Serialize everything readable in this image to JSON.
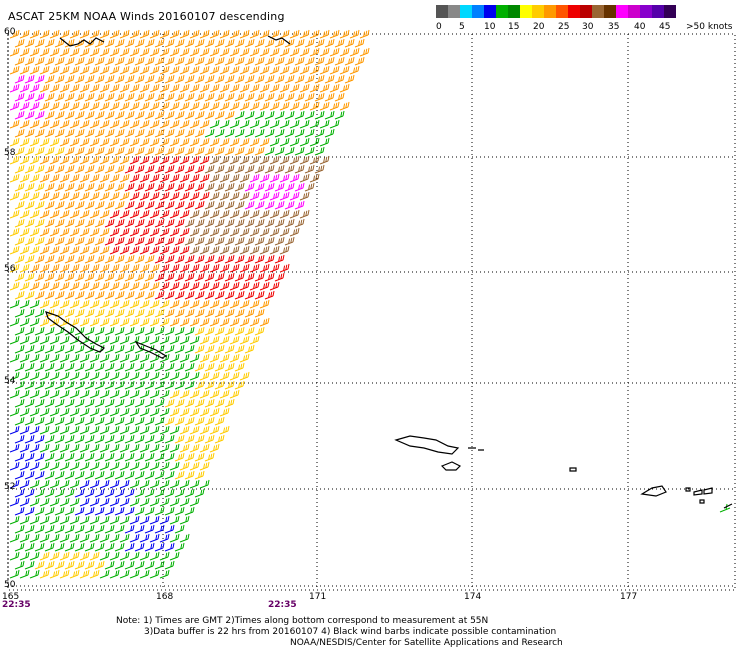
{
  "title": "ASCAT 25KM NOAA Winds 20160107 descending",
  "legend": {
    "colors": [
      "#555555",
      "#888888",
      "#00d8ff",
      "#0080ff",
      "#0000ee",
      "#00b000",
      "#008800",
      "#ffff00",
      "#ffcc00",
      "#ff9900",
      "#ff5500",
      "#ee0000",
      "#bb0000",
      "#996633",
      "#663300",
      "#ff00ff",
      "#cc00cc",
      "#8800cc",
      "#5500aa",
      "#330055"
    ],
    "labels": [
      "0",
      "5",
      "10",
      "15",
      "20",
      "25",
      "30",
      "35",
      "40",
      "45",
      ">50 knots"
    ]
  },
  "axes": {
    "lat_labels": [
      "60",
      "58",
      "56",
      "54",
      "52",
      "50"
    ],
    "lon_labels": [
      "165",
      "168",
      "171",
      "174",
      "177"
    ]
  },
  "times": [
    "22:35",
    "22:35"
  ],
  "notes": [
    "Note: 1) Times are GMT 2)Times along bottom correspond to measurement at 55N",
    "3)Data buffer is 22 hrs from 20160107 4) Black wind barbs indicate possible contamination",
    "NOAA/NESDIS/Center for Satellite Applications and Research"
  ],
  "wind_colors": {
    "calm": "#0000ee",
    "light": "#00b000",
    "moderate": "#ffcc00",
    "fresh": "#ff9900",
    "strong": "#ee0000",
    "gale": "#996633",
    "storm": "#ff00ff"
  }
}
